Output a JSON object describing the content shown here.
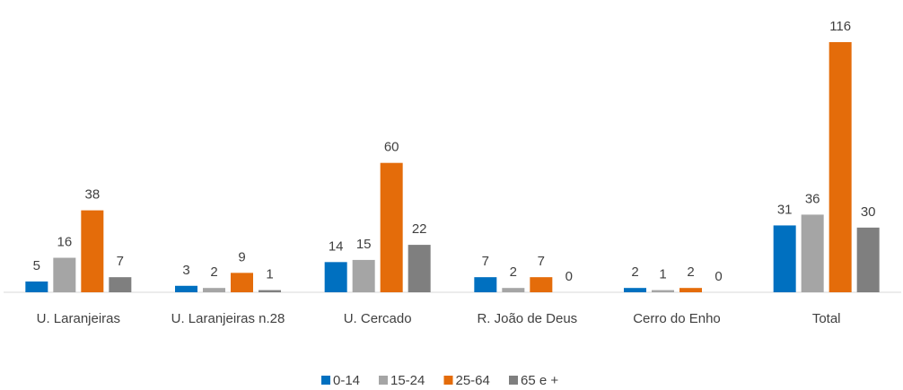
{
  "chart_data": {
    "type": "bar",
    "categories": [
      "U. Laranjeiras",
      "U. Laranjeiras n.28",
      "U. Cercado",
      "R. João de Deus",
      "Cerro do Enho",
      "Total"
    ],
    "series": [
      {
        "name": "0-14",
        "color": "#0070c0",
        "values": [
          5,
          3,
          14,
          7,
          2,
          31
        ]
      },
      {
        "name": "15-24",
        "color": "#a5a5a5",
        "values": [
          16,
          2,
          15,
          2,
          1,
          36
        ]
      },
      {
        "name": "25-64",
        "color": "#e46c0a",
        "values": [
          38,
          9,
          60,
          7,
          2,
          116
        ]
      },
      {
        "name": "65 e +",
        "color": "#7f7f7f",
        "values": [
          7,
          1,
          22,
          0,
          0,
          30
        ]
      }
    ],
    "legend": "bottom"
  }
}
